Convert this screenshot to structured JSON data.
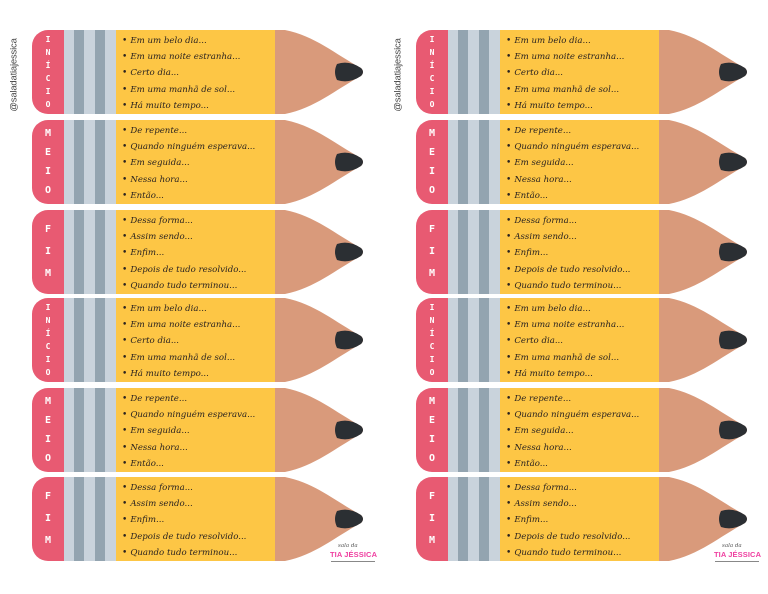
{
  "handle": "@saladatiajessica",
  "colors": {
    "eraser": "#e85a72",
    "ferrule_light": "#c9d3dc",
    "ferrule_dark": "#93a4b0",
    "body": "#fdc645",
    "wood": "#d99a7b",
    "lead": "#2b2f33",
    "logo": "#ef3fa0"
  },
  "pencils": [
    {
      "label": [
        "I",
        "N",
        "Í",
        "C",
        "I",
        "O"
      ],
      "items": [
        "Em um belo dia...",
        "Em uma noite estranha...",
        "Certo dia...",
        "Em uma manhã de sol...",
        "Há muito tempo..."
      ]
    },
    {
      "label": [
        "M",
        "E",
        "I",
        "O"
      ],
      "items": [
        "De repente...",
        "Quando ninguém esperava...",
        "Em seguida...",
        "Nessa hora...",
        "Então..."
      ]
    },
    {
      "label": [
        "F",
        "I",
        "M"
      ],
      "items": [
        "Dessa forma...",
        "Assim sendo...",
        "Enfim...",
        "Depois de tudo resolvido...",
        "Quando tudo terminou..."
      ]
    },
    {
      "label": [
        "I",
        "N",
        "Í",
        "C",
        "I",
        "O"
      ],
      "items": [
        "Em um belo dia...",
        "Em uma noite estranha...",
        "Certo dia...",
        "Em uma manhã de sol...",
        "Há muito tempo..."
      ]
    },
    {
      "label": [
        "M",
        "E",
        "I",
        "O"
      ],
      "items": [
        "De repente...",
        "Quando ninguém esperava...",
        "Em seguida...",
        "Nessa hora...",
        "Então..."
      ]
    },
    {
      "label": [
        "F",
        "I",
        "M"
      ],
      "items": [
        "Dessa forma...",
        "Assim sendo...",
        "Enfim...",
        "Depois de tudo resolvido...",
        "Quando tudo terminou..."
      ]
    }
  ],
  "logo": {
    "small": "sala da",
    "big": "TIA JÉSSICA"
  }
}
